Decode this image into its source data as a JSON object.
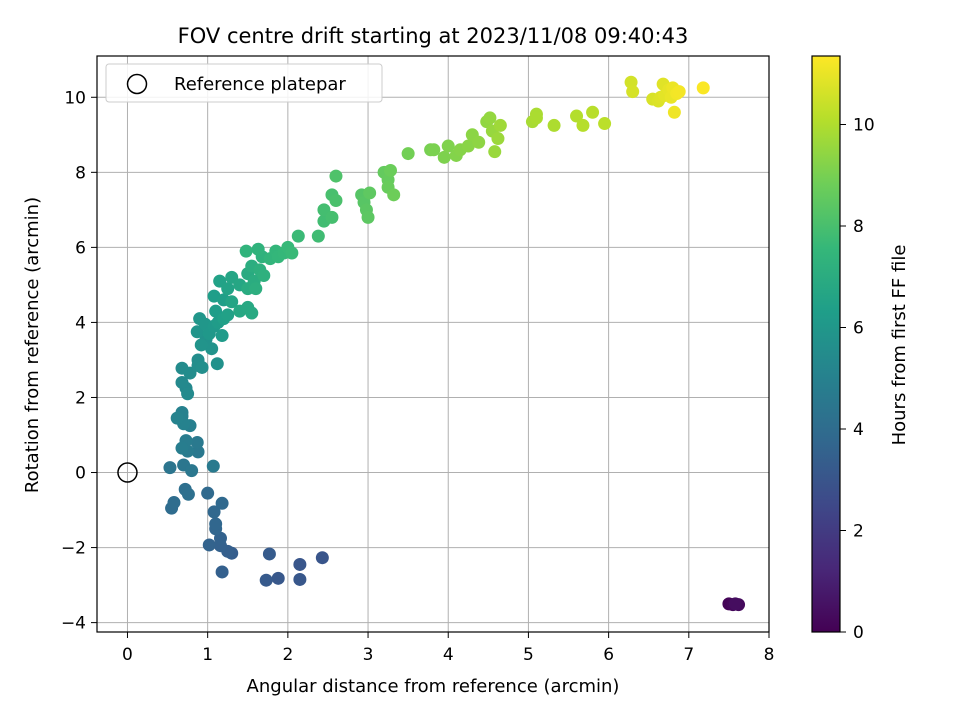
{
  "chart_data": {
    "type": "scatter",
    "title": "FOV centre drift starting at 2023/11/08 09:40:43",
    "xlabel": "Angular distance from reference (arcmin)",
    "ylabel": "Rotation from reference (arcmin)",
    "xlim": [
      -0.38,
      8.0
    ],
    "ylim": [
      -4.25,
      11.1
    ],
    "xticks": [
      0,
      1,
      2,
      3,
      4,
      5,
      6,
      7,
      8
    ],
    "yticks": [
      -4,
      -2,
      0,
      2,
      4,
      6,
      8,
      10
    ],
    "grid": true,
    "legend": {
      "placement": "top-left",
      "entries": [
        "Reference platepar"
      ]
    },
    "reference_point": {
      "x": 0,
      "y": 0,
      "marker": "open-circle"
    },
    "colorbar": {
      "label": "Hours from first FF file",
      "colormap": "viridis",
      "range": [
        0,
        11.35
      ],
      "ticks": [
        0,
        2,
        4,
        6,
        8,
        10
      ]
    },
    "points": [
      {
        "x": 7.5,
        "y": -3.5,
        "t": 0.1
      },
      {
        "x": 7.55,
        "y": -3.52,
        "t": 0.2
      },
      {
        "x": 7.62,
        "y": -3.52,
        "t": 0.3
      },
      {
        "x": 7.58,
        "y": -3.5,
        "t": 0.4
      },
      {
        "x": 2.43,
        "y": -2.27,
        "t": 3.0
      },
      {
        "x": 2.15,
        "y": -2.45,
        "t": 3.05
      },
      {
        "x": 2.15,
        "y": -2.85,
        "t": 3.1
      },
      {
        "x": 1.88,
        "y": -2.82,
        "t": 3.15
      },
      {
        "x": 1.73,
        "y": -2.87,
        "t": 3.2
      },
      {
        "x": 1.77,
        "y": -2.17,
        "t": 3.25
      },
      {
        "x": 1.3,
        "y": -2.15,
        "t": 3.35
      },
      {
        "x": 1.25,
        "y": -2.1,
        "t": 3.4
      },
      {
        "x": 1.18,
        "y": -2.65,
        "t": 3.45
      },
      {
        "x": 1.16,
        "y": -1.95,
        "t": 3.5
      },
      {
        "x": 1.16,
        "y": -1.75,
        "t": 3.55
      },
      {
        "x": 1.02,
        "y": -1.93,
        "t": 3.6
      },
      {
        "x": 1.1,
        "y": -1.5,
        "t": 3.7
      },
      {
        "x": 1.1,
        "y": -1.37,
        "t": 3.75
      },
      {
        "x": 1.08,
        "y": -1.05,
        "t": 3.8
      },
      {
        "x": 1.18,
        "y": -0.82,
        "t": 3.85
      },
      {
        "x": 1.0,
        "y": -0.55,
        "t": 3.9
      },
      {
        "x": 0.55,
        "y": -0.95,
        "t": 4.0
      },
      {
        "x": 0.58,
        "y": -0.8,
        "t": 4.05
      },
      {
        "x": 0.72,
        "y": -0.45,
        "t": 4.1
      },
      {
        "x": 0.76,
        "y": -0.58,
        "t": 4.15
      },
      {
        "x": 0.53,
        "y": 0.13,
        "t": 4.4
      },
      {
        "x": 0.7,
        "y": 0.2,
        "t": 4.45
      },
      {
        "x": 0.8,
        "y": 0.05,
        "t": 4.5
      },
      {
        "x": 0.88,
        "y": 0.55,
        "t": 4.55
      },
      {
        "x": 0.87,
        "y": 0.8,
        "t": 4.6
      },
      {
        "x": 1.07,
        "y": 0.17,
        "t": 4.65
      },
      {
        "x": 0.75,
        "y": 0.57,
        "t": 4.7
      },
      {
        "x": 0.73,
        "y": 0.85,
        "t": 4.75
      },
      {
        "x": 0.68,
        "y": 0.65,
        "t": 4.8
      },
      {
        "x": 0.78,
        "y": 1.25,
        "t": 4.9
      },
      {
        "x": 0.68,
        "y": 1.5,
        "t": 4.95
      },
      {
        "x": 0.68,
        "y": 1.6,
        "t": 5.0
      },
      {
        "x": 0.7,
        "y": 1.3,
        "t": 5.05
      },
      {
        "x": 0.62,
        "y": 1.45,
        "t": 5.1
      },
      {
        "x": 0.73,
        "y": 2.25,
        "t": 5.3
      },
      {
        "x": 0.68,
        "y": 2.4,
        "t": 5.35
      },
      {
        "x": 0.75,
        "y": 2.1,
        "t": 5.4
      },
      {
        "x": 0.68,
        "y": 2.78,
        "t": 5.45
      },
      {
        "x": 0.78,
        "y": 2.65,
        "t": 5.5
      },
      {
        "x": 0.88,
        "y": 3.0,
        "t": 5.55
      },
      {
        "x": 0.88,
        "y": 2.85,
        "t": 5.6
      },
      {
        "x": 0.93,
        "y": 2.8,
        "t": 5.65
      },
      {
        "x": 1.12,
        "y": 2.9,
        "t": 5.7
      },
      {
        "x": 0.98,
        "y": 3.55,
        "t": 5.75
      },
      {
        "x": 1.05,
        "y": 3.3,
        "t": 5.8
      },
      {
        "x": 0.92,
        "y": 3.4,
        "t": 5.85
      },
      {
        "x": 0.87,
        "y": 3.75,
        "t": 5.9
      },
      {
        "x": 0.9,
        "y": 4.1,
        "t": 5.95
      },
      {
        "x": 0.97,
        "y": 3.95,
        "t": 6.0
      },
      {
        "x": 1.02,
        "y": 3.7,
        "t": 6.05
      },
      {
        "x": 1.08,
        "y": 3.9,
        "t": 6.1
      },
      {
        "x": 1.18,
        "y": 3.65,
        "t": 6.15
      },
      {
        "x": 1.13,
        "y": 4.0,
        "t": 6.2
      },
      {
        "x": 1.1,
        "y": 4.3,
        "t": 6.25
      },
      {
        "x": 1.08,
        "y": 4.7,
        "t": 6.3
      },
      {
        "x": 1.2,
        "y": 4.6,
        "t": 6.35
      },
      {
        "x": 1.2,
        "y": 4.1,
        "t": 6.4
      },
      {
        "x": 1.25,
        "y": 4.2,
        "t": 6.45
      },
      {
        "x": 1.15,
        "y": 5.1,
        "t": 6.5
      },
      {
        "x": 1.25,
        "y": 4.9,
        "t": 6.55
      },
      {
        "x": 1.3,
        "y": 4.55,
        "t": 6.6
      },
      {
        "x": 1.3,
        "y": 5.2,
        "t": 6.65
      },
      {
        "x": 1.4,
        "y": 5.0,
        "t": 6.7
      },
      {
        "x": 1.4,
        "y": 4.3,
        "t": 6.75
      },
      {
        "x": 1.5,
        "y": 4.4,
        "t": 6.8
      },
      {
        "x": 1.55,
        "y": 4.25,
        "t": 6.85
      },
      {
        "x": 1.5,
        "y": 5.3,
        "t": 6.9
      },
      {
        "x": 1.5,
        "y": 4.9,
        "t": 6.95
      },
      {
        "x": 1.58,
        "y": 5.1,
        "t": 7.0
      },
      {
        "x": 1.55,
        "y": 5.5,
        "t": 7.05
      },
      {
        "x": 1.6,
        "y": 4.9,
        "t": 7.1
      },
      {
        "x": 1.65,
        "y": 5.4,
        "t": 7.15
      },
      {
        "x": 1.7,
        "y": 5.25,
        "t": 7.2
      },
      {
        "x": 1.68,
        "y": 5.75,
        "t": 7.25
      },
      {
        "x": 1.63,
        "y": 5.95,
        "t": 7.3
      },
      {
        "x": 1.48,
        "y": 5.9,
        "t": 7.35
      },
      {
        "x": 1.78,
        "y": 5.7,
        "t": 7.4
      },
      {
        "x": 1.85,
        "y": 5.9,
        "t": 7.45
      },
      {
        "x": 1.88,
        "y": 5.75,
        "t": 7.5
      },
      {
        "x": 1.95,
        "y": 5.85,
        "t": 7.55
      },
      {
        "x": 2.0,
        "y": 6.0,
        "t": 7.6
      },
      {
        "x": 2.05,
        "y": 5.85,
        "t": 7.65
      },
      {
        "x": 2.13,
        "y": 6.3,
        "t": 7.7
      },
      {
        "x": 2.38,
        "y": 6.3,
        "t": 7.8
      },
      {
        "x": 2.45,
        "y": 6.7,
        "t": 7.85
      },
      {
        "x": 2.45,
        "y": 7.0,
        "t": 7.9
      },
      {
        "x": 2.55,
        "y": 6.8,
        "t": 7.95
      },
      {
        "x": 2.55,
        "y": 7.4,
        "t": 8.0
      },
      {
        "x": 2.6,
        "y": 7.25,
        "t": 8.05
      },
      {
        "x": 2.6,
        "y": 7.9,
        "t": 8.15
      },
      {
        "x": 2.92,
        "y": 7.4,
        "t": 8.3
      },
      {
        "x": 2.95,
        "y": 7.2,
        "t": 8.35
      },
      {
        "x": 2.98,
        "y": 7.0,
        "t": 8.4
      },
      {
        "x": 3.0,
        "y": 6.8,
        "t": 8.45
      },
      {
        "x": 3.02,
        "y": 7.45,
        "t": 8.5
      },
      {
        "x": 3.2,
        "y": 8.0,
        "t": 8.6
      },
      {
        "x": 3.25,
        "y": 7.8,
        "t": 8.65
      },
      {
        "x": 3.25,
        "y": 7.6,
        "t": 8.7
      },
      {
        "x": 3.28,
        "y": 8.05,
        "t": 8.75
      },
      {
        "x": 3.32,
        "y": 7.4,
        "t": 8.8
      },
      {
        "x": 3.5,
        "y": 8.5,
        "t": 8.9
      },
      {
        "x": 3.78,
        "y": 8.6,
        "t": 9.0
      },
      {
        "x": 3.82,
        "y": 8.6,
        "t": 9.05
      },
      {
        "x": 3.95,
        "y": 8.4,
        "t": 9.1
      },
      {
        "x": 4.0,
        "y": 8.7,
        "t": 9.15
      },
      {
        "x": 4.1,
        "y": 8.45,
        "t": 9.2
      },
      {
        "x": 4.15,
        "y": 8.6,
        "t": 9.25
      },
      {
        "x": 4.25,
        "y": 8.7,
        "t": 9.3
      },
      {
        "x": 4.3,
        "y": 9.0,
        "t": 9.35
      },
      {
        "x": 4.38,
        "y": 8.8,
        "t": 9.4
      },
      {
        "x": 4.48,
        "y": 9.35,
        "t": 9.45
      },
      {
        "x": 4.52,
        "y": 9.45,
        "t": 9.5
      },
      {
        "x": 4.55,
        "y": 9.1,
        "t": 9.55
      },
      {
        "x": 4.58,
        "y": 8.55,
        "t": 9.6
      },
      {
        "x": 4.62,
        "y": 8.9,
        "t": 9.65
      },
      {
        "x": 4.65,
        "y": 9.25,
        "t": 9.7
      },
      {
        "x": 5.05,
        "y": 9.35,
        "t": 9.85
      },
      {
        "x": 5.1,
        "y": 9.55,
        "t": 9.9
      },
      {
        "x": 5.1,
        "y": 9.45,
        "t": 9.92
      },
      {
        "x": 5.32,
        "y": 9.25,
        "t": 9.95
      },
      {
        "x": 5.6,
        "y": 9.5,
        "t": 10.05
      },
      {
        "x": 5.68,
        "y": 9.25,
        "t": 10.1
      },
      {
        "x": 5.8,
        "y": 9.6,
        "t": 10.15
      },
      {
        "x": 5.95,
        "y": 9.3,
        "t": 10.2
      },
      {
        "x": 6.28,
        "y": 10.4,
        "t": 10.6
      },
      {
        "x": 6.3,
        "y": 10.15,
        "t": 10.65
      },
      {
        "x": 6.55,
        "y": 9.95,
        "t": 10.7
      },
      {
        "x": 6.62,
        "y": 9.9,
        "t": 10.75
      },
      {
        "x": 6.65,
        "y": 10.0,
        "t": 10.8
      },
      {
        "x": 6.68,
        "y": 10.35,
        "t": 10.85
      },
      {
        "x": 6.7,
        "y": 10.05,
        "t": 10.9
      },
      {
        "x": 6.75,
        "y": 10.2,
        "t": 10.95
      },
      {
        "x": 6.78,
        "y": 10.0,
        "t": 11.0
      },
      {
        "x": 6.8,
        "y": 10.25,
        "t": 11.05
      },
      {
        "x": 6.82,
        "y": 9.6,
        "t": 11.1
      },
      {
        "x": 6.85,
        "y": 10.1,
        "t": 11.15
      },
      {
        "x": 6.88,
        "y": 10.15,
        "t": 11.2
      },
      {
        "x": 7.18,
        "y": 10.25,
        "t": 11.3
      }
    ]
  }
}
